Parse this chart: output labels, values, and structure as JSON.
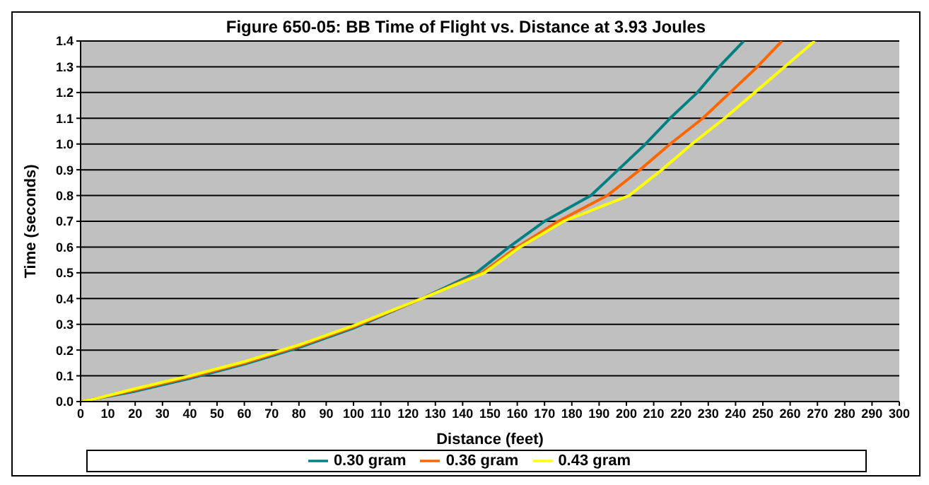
{
  "chart_data": {
    "type": "line",
    "title": "Figure 650-05:  BB Time of Flight vs. Distance at 3.93 Joules",
    "xlabel": "Distance (feet)",
    "ylabel": "Time (seconds)",
    "series": [
      {
        "name": "0.30 gram",
        "color": "#008080",
        "x": [
          0,
          5,
          20,
          40,
          60,
          80,
          100,
          125,
          145,
          157,
          170,
          187,
          197,
          207,
          216,
          226,
          234,
          243
        ],
        "values": [
          0,
          0.01,
          0.04,
          0.09,
          0.145,
          0.21,
          0.285,
          0.4,
          0.5,
          0.6,
          0.7,
          0.8,
          0.9,
          1.0,
          1.1,
          1.2,
          1.3,
          1.4
        ]
      },
      {
        "name": "0.36 gram",
        "color": "#ff6600",
        "x": [
          0,
          5,
          20,
          40,
          60,
          80,
          100,
          125,
          147,
          160,
          175,
          193,
          205,
          216,
          228,
          238,
          248,
          257
        ],
        "values": [
          0,
          0.01,
          0.045,
          0.095,
          0.15,
          0.215,
          0.29,
          0.4,
          0.5,
          0.6,
          0.7,
          0.8,
          0.9,
          1.0,
          1.1,
          1.2,
          1.3,
          1.4
        ]
      },
      {
        "name": "0.43 gram",
        "color": "#ffff00",
        "x": [
          0,
          5,
          20,
          40,
          60,
          80,
          100,
          125,
          148,
          161,
          177,
          201,
          213,
          224,
          236,
          247,
          258,
          269
        ],
        "values": [
          0,
          0.01,
          0.05,
          0.1,
          0.155,
          0.22,
          0.295,
          0.4,
          0.5,
          0.6,
          0.7,
          0.8,
          0.9,
          1.0,
          1.1,
          1.2,
          1.3,
          1.4
        ]
      }
    ],
    "xlim": [
      0,
      300
    ],
    "xticks": [
      0,
      10,
      20,
      30,
      40,
      50,
      60,
      70,
      80,
      90,
      100,
      110,
      120,
      130,
      140,
      150,
      160,
      170,
      180,
      190,
      200,
      210,
      220,
      230,
      240,
      250,
      260,
      270,
      280,
      290,
      300
    ],
    "ylim": [
      0,
      1.4
    ],
    "yticks": [
      {
        "value": 0,
        "label": "0.0"
      },
      0.1,
      0.2,
      0.3,
      0.4,
      0.5,
      0.6,
      0.7,
      0.8,
      0.9,
      {
        "value": 1,
        "label": "1.0"
      },
      1.1,
      1.2,
      1.3,
      1.4
    ],
    "grid": "y",
    "legend": "bottom",
    "marker": "none",
    "line_style": "solid"
  }
}
